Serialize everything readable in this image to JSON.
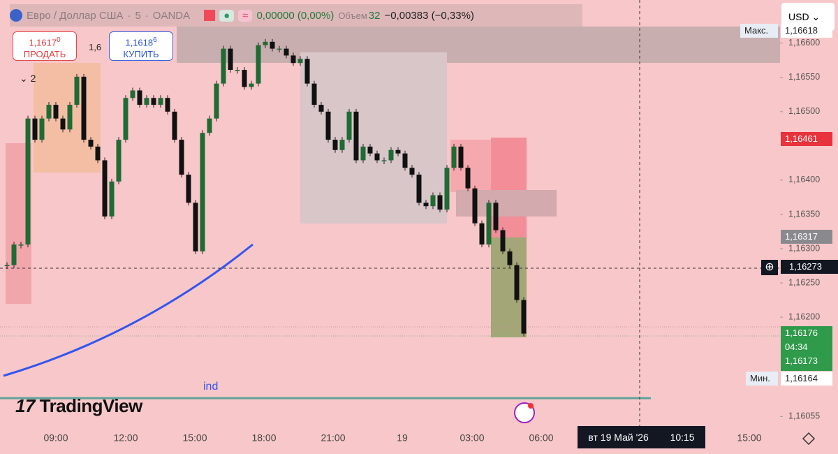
{
  "header": {
    "symbol": "Евро / Доллар США",
    "interval": "5",
    "exchange": "OANDA",
    "change_zero": "0,00000 (0,00%)",
    "volume_label": "Объем",
    "volume": "32",
    "change": "−0,00383 (−0,33%)"
  },
  "trade": {
    "sell_price": "1,1617",
    "sell_price_sup": "0",
    "sell_label": "ПРОДАТЬ",
    "spread": "1,6",
    "buy_price": "1,1618",
    "buy_price_sup": "6",
    "buy_label": "КУПИТЬ"
  },
  "indicators_collapsed": "2",
  "currency": "USD",
  "logo": "TradingView",
  "chart": {
    "type": "candlestick",
    "close": [
      1.16276,
      1.16306,
      1.16306,
      1.1649,
      1.16459,
      1.1649,
      1.1651,
      1.1649,
      1.16474,
      1.1651,
      1.16551,
      1.16459,
      1.16449,
      1.16429,
      1.16347,
      1.16398,
      1.16459,
      1.1652,
      1.16531,
      1.1651,
      1.1652,
      1.1651,
      1.1652,
      1.165,
      1.16459,
      1.16408,
      1.16367,
      1.16296,
      1.16469,
      1.1649,
      1.16541,
      1.16592,
      1.16561,
      1.16561,
      1.16536,
      1.16541,
      1.16597,
      1.16602,
      1.16592,
      1.16592,
      1.16582,
      1.16571,
      1.16577,
      1.16541,
      1.1651,
      1.165,
      1.16459,
      1.16444,
      1.16459,
      1.165,
      1.16429,
      1.16449,
      1.16439,
      1.16429,
      1.16429,
      1.16444,
      1.16439,
      1.16418,
      1.16408,
      1.16367,
      1.16362,
      1.16378,
      1.16357,
      1.16418,
      1.16449,
      1.16418,
      1.16388,
      1.16337,
      1.16306,
      1.16367,
      1.16327,
      1.16296,
      1.16276,
      1.16225,
      1.16176
    ],
    "up_color": "#1f6b34",
    "down_color": "#111111",
    "ylim": [
      1.16041,
      1.16663
    ],
    "yticks": [
      {
        "value": 1.166,
        "label": "1,16600"
      },
      {
        "value": 1.1655,
        "label": "1,16550"
      },
      {
        "value": 1.165,
        "label": "1,16500"
      },
      {
        "value": 1.164,
        "label": "1,16400"
      },
      {
        "value": 1.1635,
        "label": "1,16350"
      },
      {
        "value": 1.163,
        "label": "1,16300"
      },
      {
        "value": 1.1625,
        "label": "1,16250"
      },
      {
        "value": 1.162,
        "label": "1,16200"
      },
      {
        "value": 1.16055,
        "label": "1,16055"
      }
    ],
    "xtick_labels": [
      "09:00",
      "12:00",
      "15:00",
      "18:00",
      "21:00",
      "19",
      "03:00",
      "06:00",
      "15:00"
    ],
    "max_label": "Макс.",
    "max_value": "1,16618",
    "min_label": "Мин.",
    "min_value": "1,16164",
    "alert_price": "1,16461",
    "level_price": "1,16317",
    "last_price": "1,16176",
    "countdown": "04:34",
    "bid_price": "1,16173",
    "crosshair_price": "1,16273",
    "crosshair_date": "вт 19 Май '26",
    "crosshair_time": "10:15",
    "indicator_label": "ind"
  }
}
